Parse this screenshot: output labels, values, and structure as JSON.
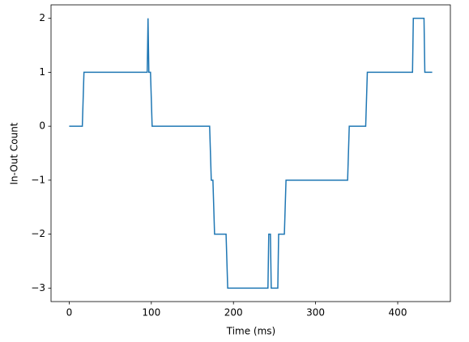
{
  "chart_data": {
    "type": "line",
    "xlabel": "Time (ms)",
    "ylabel": "In-Out Count",
    "x": [
      0,
      16,
      18,
      95,
      96,
      97,
      99,
      101,
      171,
      173,
      175,
      177,
      191,
      193,
      242,
      243,
      245,
      246,
      254,
      255,
      262,
      264,
      339,
      341,
      361,
      363,
      418,
      419,
      432,
      433,
      442
    ],
    "series": [
      {
        "color": "#1f77b4",
        "values": [
          0,
          0,
          1,
          1,
          2,
          1,
          1,
          0,
          0,
          -1,
          -1,
          -2,
          -2,
          -3,
          -3,
          -2,
          -2,
          -3,
          -3,
          -2,
          -2,
          -1,
          -1,
          0,
          0,
          1,
          1,
          2,
          2,
          1,
          1
        ]
      }
    ],
    "xlim": [
      -22.1,
      464.1
    ],
    "ylim": [
      -3.25,
      2.25
    ],
    "xticks": [
      0,
      100,
      200,
      300,
      400
    ],
    "yticks": [
      {
        "value": -3,
        "label": "−3"
      },
      {
        "value": -2,
        "label": "−2"
      },
      {
        "value": -1,
        "label": "−1"
      },
      0,
      1,
      2
    ]
  }
}
